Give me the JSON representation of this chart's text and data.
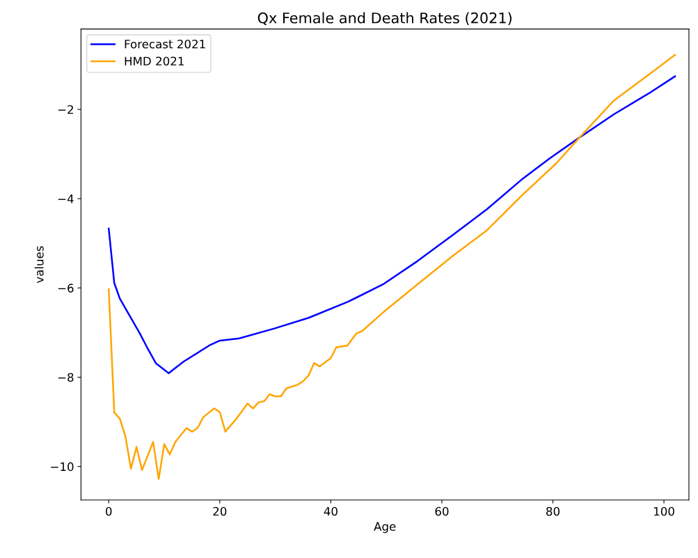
{
  "chart_data": {
    "type": "line",
    "title": "Qx Female and Death Rates (2021)",
    "xlabel": "Age",
    "ylabel": "values",
    "xlim": [
      -5,
      104.5
    ],
    "ylim": [
      -10.75,
      -0.2
    ],
    "xticks": [
      0,
      20,
      40,
      60,
      80,
      100
    ],
    "yticks": [
      -10,
      -8,
      -6,
      -4,
      -2
    ],
    "grid": false,
    "legend": "top left",
    "series": [
      {
        "name": "Forecast 2021",
        "color": "#0000ff",
        "x": [
          0,
          1,
          2,
          5.6,
          6.9,
          8.5,
          10.8,
          13.5,
          18.1,
          20,
          23.5,
          29.8,
          36,
          43.1,
          49.4,
          55.6,
          61.9,
          68.1,
          74.4,
          79.4,
          84.8,
          91,
          97.3,
          102
        ],
        "values": [
          -4.67,
          -5.89,
          -6.24,
          -7.02,
          -7.33,
          -7.69,
          -7.91,
          -7.65,
          -7.29,
          -7.18,
          -7.13,
          -6.91,
          -6.67,
          -6.31,
          -5.92,
          -5.4,
          -4.82,
          -4.24,
          -3.57,
          -3.1,
          -2.63,
          -2.11,
          -1.64,
          -1.26
        ]
      },
      {
        "name": "HMD 2021",
        "color": "#ffa500",
        "x": [
          0,
          1,
          2,
          3,
          4,
          5,
          6,
          8,
          9,
          10,
          11,
          12,
          14,
          15,
          16,
          17,
          19,
          20,
          21,
          23,
          25,
          26,
          27,
          28,
          29,
          30,
          31,
          32,
          34,
          35,
          36,
          37,
          38,
          40,
          41,
          43,
          44.6,
          45.6,
          49.4,
          55.6,
          61.9,
          68.1,
          74.4,
          80.6,
          84.8,
          91,
          97.3,
          102
        ],
        "values": [
          -6.03,
          -8.79,
          -8.93,
          -9.32,
          -10.05,
          -9.56,
          -10.08,
          -9.45,
          -10.28,
          -9.5,
          -9.73,
          -9.45,
          -9.14,
          -9.22,
          -9.14,
          -8.9,
          -8.7,
          -8.78,
          -9.22,
          -8.93,
          -8.59,
          -8.7,
          -8.56,
          -8.54,
          -8.38,
          -8.43,
          -8.43,
          -8.25,
          -8.17,
          -8.09,
          -7.96,
          -7.68,
          -7.76,
          -7.57,
          -7.33,
          -7.29,
          -7.02,
          -6.97,
          -6.55,
          -5.92,
          -5.29,
          -4.71,
          -3.93,
          -3.21,
          -2.63,
          -1.8,
          -1.22,
          -0.78
        ]
      }
    ]
  }
}
